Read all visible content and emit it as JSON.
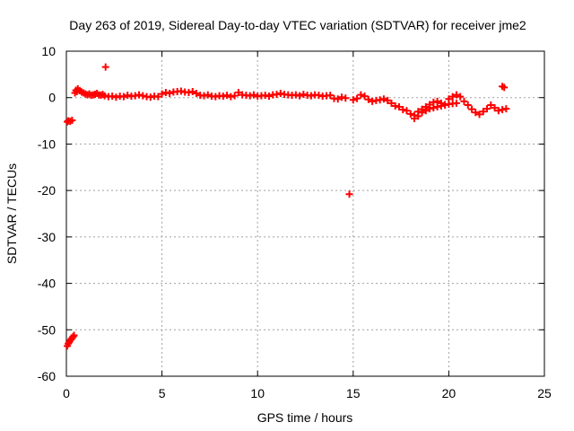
{
  "chart_data": {
    "type": "scatter",
    "title": "Day 263 of 2019, Sidereal Day-to-day VTEC variation (SDTVAR) for receiver jme2",
    "xlabel": "GPS time / hours",
    "ylabel": "SDTVAR / TECUs",
    "xlim": [
      0,
      25
    ],
    "ylim": [
      -60,
      10
    ],
    "xticks": [
      "0",
      "5",
      "10",
      "15",
      "20",
      "25"
    ],
    "yticks": [
      "10",
      "0",
      "-10",
      "-20",
      "-30",
      "-40",
      "-50",
      "-60"
    ],
    "grid": true,
    "legend": "none",
    "marker": "plus",
    "series": [
      {
        "name": "SDTVAR",
        "color": "#ff0000",
        "x": [
          0.05,
          0.1,
          0.15,
          0.2,
          0.25,
          0.3,
          0.35,
          0.4,
          0.05,
          0.1,
          0.2,
          0.3,
          0.45,
          0.5,
          0.55,
          0.6,
          0.7,
          0.8,
          0.9,
          1.0,
          1.1,
          1.2,
          1.3,
          1.4,
          1.5,
          1.6,
          1.7,
          1.8,
          1.9,
          2.0,
          2.05,
          2.2,
          2.4,
          2.6,
          2.8,
          3.0,
          3.2,
          3.4,
          3.6,
          3.8,
          4.0,
          4.2,
          4.4,
          4.6,
          4.8,
          5.0,
          5.2,
          5.4,
          5.6,
          5.8,
          6.0,
          6.2,
          6.4,
          6.6,
          6.8,
          7.0,
          7.2,
          7.4,
          7.6,
          7.8,
          8.0,
          8.2,
          8.4,
          8.6,
          8.8,
          9.0,
          9.2,
          9.4,
          9.6,
          9.8,
          10.0,
          10.2,
          10.4,
          10.6,
          10.8,
          11.0,
          11.2,
          11.4,
          11.6,
          11.8,
          12.0,
          12.2,
          12.4,
          12.6,
          12.8,
          13.0,
          13.2,
          13.4,
          13.6,
          13.8,
          14.0,
          14.2,
          14.4,
          14.6,
          14.8,
          15.0,
          15.2,
          15.4,
          15.6,
          15.8,
          16.0,
          16.2,
          16.4,
          16.6,
          16.8,
          17.0,
          17.2,
          17.4,
          17.6,
          17.8,
          18.0,
          18.2,
          18.4,
          18.6,
          18.8,
          19.0,
          19.2,
          19.4,
          19.6,
          19.8,
          20.0,
          20.2,
          20.4,
          20.6,
          20.8,
          21.0,
          21.2,
          21.4,
          21.6,
          21.8,
          22.0,
          22.2,
          22.4,
          22.6,
          22.8,
          23.0,
          18.2,
          18.4,
          18.6,
          18.8,
          19.0,
          19.2,
          19.4,
          19.6,
          19.8,
          20.0,
          20.2,
          20.4,
          22.8,
          22.9
        ],
        "y": [
          -53.5,
          -53.0,
          -52.7,
          -52.3,
          -52.0,
          -51.8,
          -51.5,
          -51.2,
          -5.2,
          -5.0,
          -5.1,
          -4.9,
          1.0,
          1.6,
          1.3,
          1.9,
          1.5,
          1.2,
          1.0,
          0.8,
          0.6,
          0.8,
          0.5,
          0.6,
          0.7,
          0.9,
          0.6,
          0.5,
          0.7,
          0.4,
          6.6,
          0.2,
          0.3,
          0.1,
          0.3,
          0.2,
          0.5,
          0.3,
          0.4,
          0.6,
          0.4,
          0.2,
          0.1,
          0.3,
          0.2,
          0.8,
          1.1,
          0.9,
          1.2,
          1.3,
          1.4,
          1.2,
          1.1,
          1.3,
          0.9,
          0.5,
          0.4,
          0.6,
          0.3,
          0.2,
          0.4,
          0.3,
          0.5,
          0.2,
          0.4,
          1.1,
          0.6,
          0.5,
          0.4,
          0.6,
          0.3,
          0.4,
          0.5,
          0.3,
          0.6,
          0.7,
          0.9,
          0.7,
          0.6,
          0.5,
          0.6,
          0.4,
          0.7,
          0.5,
          0.4,
          0.6,
          0.5,
          0.3,
          0.4,
          0.5,
          -0.2,
          -0.3,
          0.1,
          -0.1,
          -20.8,
          -0.5,
          -0.2,
          0.6,
          0.3,
          -0.4,
          -0.8,
          -0.6,
          -0.5,
          -0.3,
          -0.6,
          -1.2,
          -1.8,
          -2.0,
          -2.6,
          -2.8,
          -3.5,
          -3.8,
          -3.0,
          -2.5,
          -2.0,
          -1.5,
          -1.0,
          -0.8,
          -1.2,
          -1.5,
          -0.3,
          0.2,
          0.6,
          0.2,
          -0.8,
          -1.6,
          -2.5,
          -3.2,
          -3.6,
          -3.0,
          -2.4,
          -1.6,
          -2.2,
          -2.8,
          -2.6,
          -2.4,
          -4.5,
          -4.0,
          -3.2,
          -2.8,
          -2.4,
          -2.2,
          -2.0,
          -1.8,
          -1.6,
          -1.4,
          -1.3,
          -1.2,
          2.4,
          2.2
        ]
      }
    ]
  }
}
